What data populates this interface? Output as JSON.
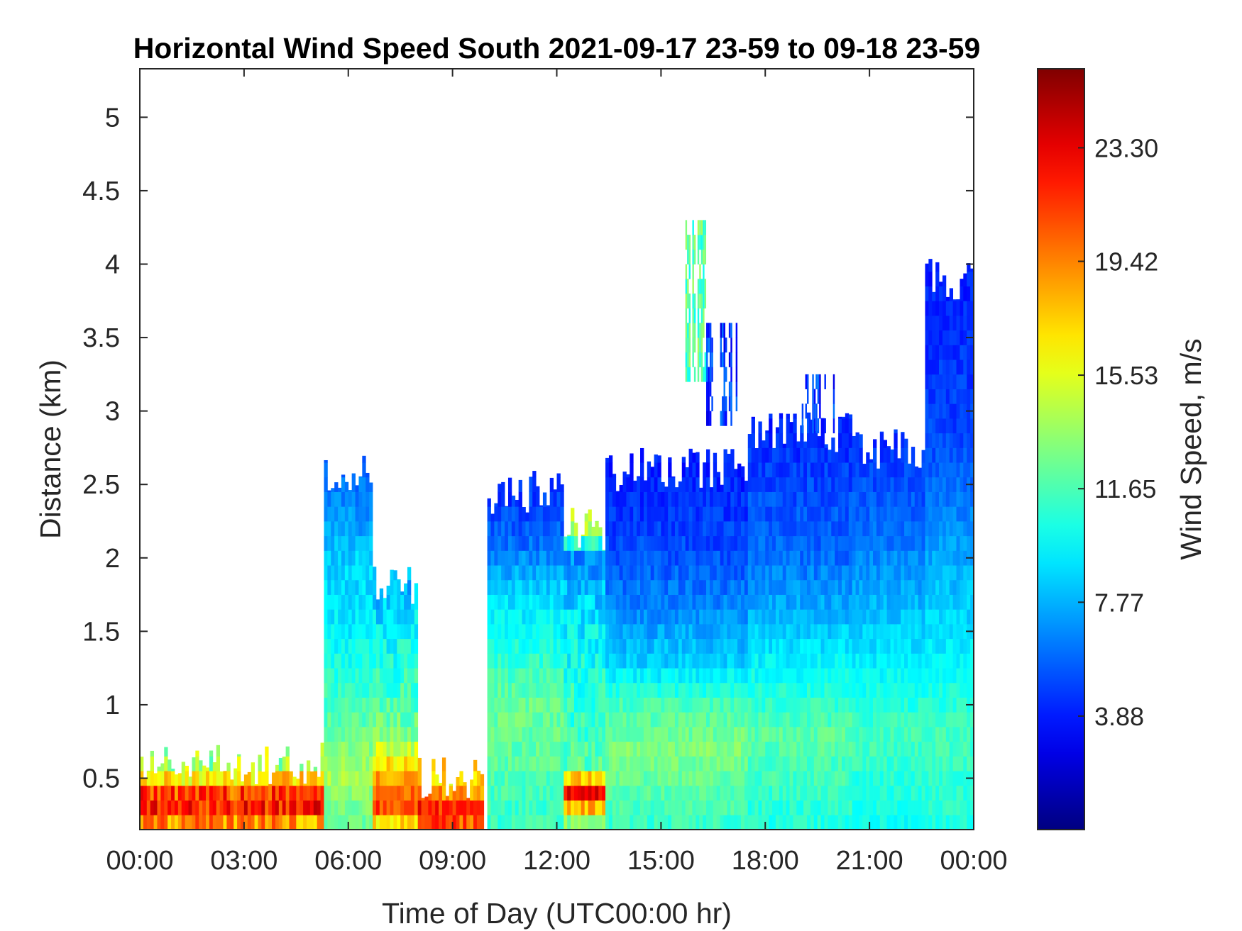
{
  "chart_data": {
    "type": "heatmap",
    "title": "Horizontal Wind Speed South 2021-09-17 23-59 to 09-18 23-59",
    "xlabel": "Time of Day (UTC00:00 hr)",
    "ylabel": "Distance (km)",
    "xlim_hours": [
      0,
      24
    ],
    "ylim_km": [
      0.15,
      5.33
    ],
    "x_ticks": [
      {
        "value": 0,
        "label": "00:00"
      },
      {
        "value": 3,
        "label": "03:00"
      },
      {
        "value": 6,
        "label": "06:00"
      },
      {
        "value": 9,
        "label": "09:00"
      },
      {
        "value": 12,
        "label": "12:00"
      },
      {
        "value": 15,
        "label": "15:00"
      },
      {
        "value": 18,
        "label": "18:00"
      },
      {
        "value": 21,
        "label": "21:00"
      },
      {
        "value": 24,
        "label": "00:00"
      }
    ],
    "y_ticks": [
      {
        "value": 0.5,
        "label": "0.5"
      },
      {
        "value": 1,
        "label": "1"
      },
      {
        "value": 1.5,
        "label": "1.5"
      },
      {
        "value": 2,
        "label": "2"
      },
      {
        "value": 2.5,
        "label": "2.5"
      },
      {
        "value": 3,
        "label": "3"
      },
      {
        "value": 3.5,
        "label": "3.5"
      },
      {
        "value": 4,
        "label": "4"
      },
      {
        "value": 4.5,
        "label": "4.5"
      },
      {
        "value": 5,
        "label": "5"
      }
    ],
    "colorbar": {
      "label": "Wind Speed, m/s",
      "range": [
        0,
        26
      ],
      "colormap": "jet",
      "ticks": [
        {
          "value": 3.88,
          "label": "3.88"
        },
        {
          "value": 7.77,
          "label": "7.77"
        },
        {
          "value": 11.65,
          "label": "11.65"
        },
        {
          "value": 15.53,
          "label": "15.53"
        },
        {
          "value": 19.42,
          "label": "19.42"
        },
        {
          "value": 23.3,
          "label": "23.30"
        }
      ]
    },
    "range_gate_km": 0.1,
    "time_step_hours": 0.1,
    "segments": [
      {
        "t_start": 0.0,
        "t_end": 5.3,
        "top_km": 0.6,
        "profile": [
          [
            0.15,
            16
          ],
          [
            0.2,
            19
          ],
          [
            0.3,
            22
          ],
          [
            0.4,
            21
          ],
          [
            0.5,
            17
          ],
          [
            0.6,
            14
          ]
        ],
        "noise": 2.5
      },
      {
        "t_start": 5.3,
        "t_end": 6.7,
        "top_km": 2.6,
        "profile": [
          [
            0.15,
            12
          ],
          [
            0.5,
            14
          ],
          [
            1.0,
            11.5
          ],
          [
            1.5,
            9.5
          ],
          [
            2.0,
            8.5
          ],
          [
            2.4,
            6.5
          ],
          [
            2.6,
            5.5
          ]
        ],
        "noise": 1.0
      },
      {
        "t_start": 6.7,
        "t_end": 8.0,
        "top_km": 1.8,
        "profile": [
          [
            0.15,
            15
          ],
          [
            0.3,
            21
          ],
          [
            0.5,
            19
          ],
          [
            0.8,
            13
          ],
          [
            1.2,
            11
          ],
          [
            1.8,
            8
          ]
        ],
        "noise": 1.5
      },
      {
        "t_start": 8.0,
        "t_end": 9.9,
        "top_km": 0.5,
        "profile": [
          [
            0.15,
            20
          ],
          [
            0.3,
            22
          ],
          [
            0.5,
            17
          ]
        ],
        "noise": 2.0
      },
      {
        "t_start": 10.0,
        "t_end": 12.2,
        "top_km": 2.45,
        "profile": [
          [
            0.15,
            11
          ],
          [
            0.6,
            12
          ],
          [
            1.0,
            12.5
          ],
          [
            1.5,
            10
          ],
          [
            1.8,
            8.5
          ],
          [
            2.1,
            6
          ],
          [
            2.45,
            4.5
          ]
        ],
        "noise": 1.0
      },
      {
        "t_start": 12.2,
        "t_end": 13.4,
        "top_km": 2.2,
        "profile": [
          [
            0.15,
            11
          ],
          [
            0.4,
            23
          ],
          [
            0.6,
            12
          ],
          [
            1.0,
            11
          ],
          [
            1.5,
            9.5
          ],
          [
            2.0,
            7
          ],
          [
            2.2,
            14
          ]
        ],
        "noise": 1.5
      },
      {
        "t_start": 13.4,
        "t_end": 17.5,
        "top_km": 2.6,
        "profile": [
          [
            0.15,
            11
          ],
          [
            0.7,
            13
          ],
          [
            1.0,
            11.5
          ],
          [
            1.3,
            8.5
          ],
          [
            1.7,
            6.5
          ],
          [
            2.1,
            5
          ],
          [
            2.6,
            4
          ]
        ],
        "noise": 0.9
      },
      {
        "t_start": 17.5,
        "t_end": 20.5,
        "top_km": 2.85,
        "profile": [
          [
            0.15,
            10.5
          ],
          [
            0.8,
            12
          ],
          [
            1.2,
            10
          ],
          [
            1.6,
            8
          ],
          [
            2.0,
            6
          ],
          [
            2.5,
            5
          ],
          [
            2.85,
            4.2
          ]
        ],
        "noise": 0.9
      },
      {
        "t_start": 20.5,
        "t_end": 22.6,
        "top_km": 2.75,
        "profile": [
          [
            0.15,
            10
          ],
          [
            0.8,
            11.5
          ],
          [
            1.4,
            9
          ],
          [
            1.8,
            7.5
          ],
          [
            2.2,
            6
          ],
          [
            2.75,
            4.5
          ]
        ],
        "noise": 0.8
      },
      {
        "t_start": 22.6,
        "t_end": 24.0,
        "top_km": 3.9,
        "profile": [
          [
            0.15,
            10.5
          ],
          [
            0.8,
            11.5
          ],
          [
            1.5,
            9
          ],
          [
            2.2,
            7
          ],
          [
            2.8,
            5
          ],
          [
            3.4,
            4.5
          ],
          [
            3.9,
            4
          ]
        ],
        "noise": 0.8
      }
    ],
    "patches": [
      {
        "t_start": 15.7,
        "t_end": 16.3,
        "bottom_km": 3.2,
        "top_km": 4.3,
        "value": 12
      },
      {
        "t_start": 16.3,
        "t_end": 17.2,
        "bottom_km": 2.9,
        "top_km": 3.6,
        "value": 4.5
      },
      {
        "t_start": 19.0,
        "t_end": 20.0,
        "bottom_km": 2.85,
        "top_km": 3.25,
        "value": 4.5
      }
    ]
  }
}
